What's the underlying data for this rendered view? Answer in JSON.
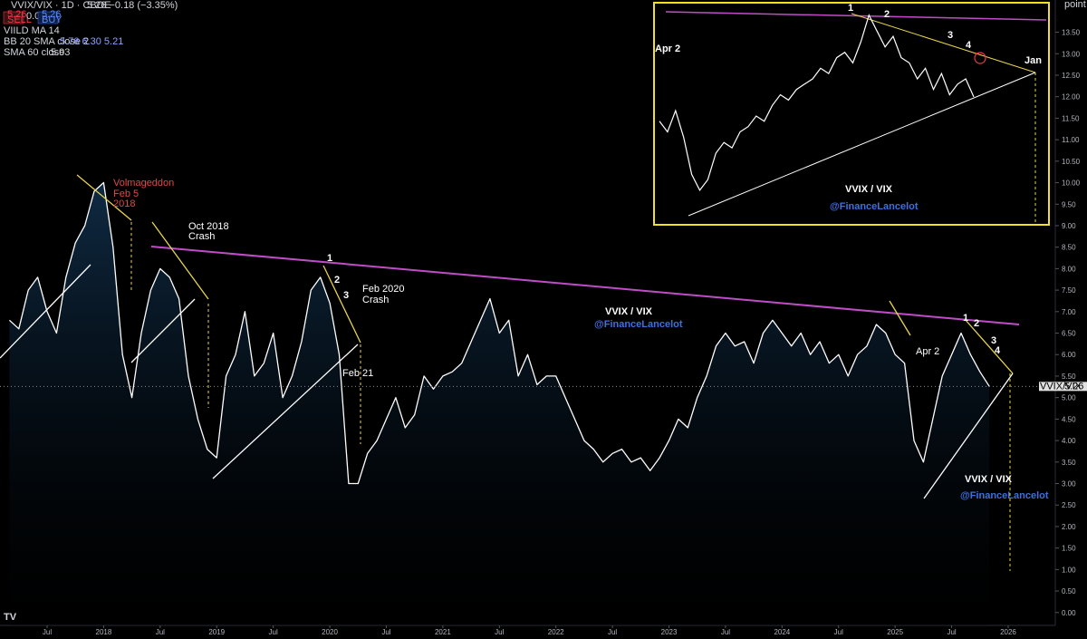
{
  "header": {
    "symbol": "VVIX/VIX · 1D · CBOE",
    "change": "5.26 −0.18 (−3.35%)",
    "sell_price": "5.26",
    "sell": "SELL",
    "spread": "0.00",
    "buy_price": "5.26",
    "buy": "BUY",
    "ind1": "VIILD MA 14",
    "ind2": "BB 20 SMA close 2",
    "ind2_values": "5.76 6.30 5.21",
    "ind3": "SMA 60 close",
    "ind3_value": "5.93",
    "unit": "point"
  },
  "chart_data": [
    {
      "type": "line",
      "title": "VVIX/VIX · 1D · CBOE",
      "x": [
        "2017-03",
        "2017-04",
        "2017-05",
        "2017-06",
        "2017-07",
        "2017-08",
        "2017-09",
        "2017-10",
        "2017-11",
        "2017-12",
        "2018-01",
        "2018-02",
        "2018-03",
        "2018-04",
        "2018-05",
        "2018-06",
        "2018-07",
        "2018-08",
        "2018-09",
        "2018-10",
        "2018-11",
        "2018-12",
        "2019-01",
        "2019-02",
        "2019-03",
        "2019-04",
        "2019-05",
        "2019-06",
        "2019-07",
        "2019-08",
        "2019-09",
        "2019-10",
        "2019-11",
        "2019-12",
        "2020-01",
        "2020-02",
        "2020-03",
        "2020-04",
        "2020-05",
        "2020-06",
        "2020-07",
        "2020-08",
        "2020-09",
        "2020-10",
        "2020-11",
        "2020-12",
        "2021-01",
        "2021-02",
        "2021-03",
        "2021-04",
        "2021-05",
        "2021-06",
        "2021-07",
        "2021-08",
        "2021-09",
        "2021-10",
        "2021-11",
        "2021-12",
        "2022-01",
        "2022-02",
        "2022-03",
        "2022-04",
        "2022-05",
        "2022-06",
        "2022-07",
        "2022-08",
        "2022-09",
        "2022-10",
        "2022-11",
        "2022-12",
        "2023-01",
        "2023-02",
        "2023-03",
        "2023-04",
        "2023-05",
        "2023-06",
        "2023-07",
        "2023-08",
        "2023-09",
        "2023-10",
        "2023-11",
        "2023-12",
        "2024-01",
        "2024-02",
        "2024-03",
        "2024-04",
        "2024-05",
        "2024-06",
        "2024-07",
        "2024-08",
        "2024-09",
        "2024-10",
        "2024-11",
        "2024-12",
        "2025-01",
        "2025-02",
        "2025-03",
        "2025-04",
        "2025-05",
        "2025-06",
        "2025-07",
        "2025-08",
        "2025-09",
        "2025-10",
        "2025-11"
      ],
      "series": [
        {
          "name": "VVIX/VIX",
          "color": "#ffffff",
          "values": [
            6.8,
            6.6,
            7.5,
            7.8,
            7.0,
            6.5,
            7.8,
            8.6,
            9.0,
            9.8,
            10.0,
            8.5,
            6.0,
            5.0,
            6.5,
            7.5,
            8.0,
            7.8,
            7.3,
            5.5,
            4.5,
            3.8,
            3.6,
            5.5,
            6.0,
            7.0,
            5.5,
            5.8,
            6.5,
            5.0,
            5.5,
            6.3,
            7.5,
            7.8,
            7.2,
            6.0,
            3.0,
            3.0,
            3.7,
            4.0,
            4.5,
            5.0,
            4.3,
            4.6,
            5.5,
            5.2,
            5.5,
            5.6,
            5.8,
            6.3,
            6.8,
            7.3,
            6.5,
            6.8,
            5.5,
            6.0,
            5.3,
            5.5,
            5.5,
            5.0,
            4.5,
            4.0,
            3.8,
            3.5,
            3.7,
            3.8,
            3.5,
            3.6,
            3.3,
            3.6,
            4.0,
            4.5,
            4.3,
            5.0,
            5.5,
            6.2,
            6.5,
            6.2,
            6.3,
            5.8,
            6.5,
            6.8,
            6.5,
            6.2,
            6.5,
            6.0,
            6.3,
            5.8,
            6.0,
            5.5,
            6.0,
            6.2,
            6.7,
            6.5,
            6.0,
            5.8,
            4.0,
            3.5,
            4.5,
            5.5,
            6.0,
            6.5,
            6.0,
            5.6,
            5.26
          ]
        }
      ],
      "last_value": 5.26,
      "xlim": [
        "2017-02",
        "2026-06"
      ],
      "ylim": [
        -0.3,
        14.25
      ],
      "xticks": [
        {
          "value": "2017-07",
          "label": "Jul"
        },
        {
          "value": "2018-01",
          "label": "2018"
        },
        {
          "value": "2018-07",
          "label": "Jul"
        },
        {
          "value": "2019-01",
          "label": "2019"
        },
        {
          "value": "2019-07",
          "label": "Jul"
        },
        {
          "value": "2020-01",
          "label": "2020"
        },
        {
          "value": "2020-07",
          "label": "Jul"
        },
        {
          "value": "2021-01",
          "label": "2021"
        },
        {
          "value": "2021-07",
          "label": "Jul"
        },
        {
          "value": "2022-01",
          "label": "2022"
        },
        {
          "value": "2022-07",
          "label": "Jul"
        },
        {
          "value": "2023-01",
          "label": "2023"
        },
        {
          "value": "2023-07",
          "label": "Jul"
        },
        {
          "value": "2024-01",
          "label": "2024"
        },
        {
          "value": "2024-07",
          "label": "Jul"
        },
        {
          "value": "2025-01",
          "label": "2025"
        },
        {
          "value": "2025-07",
          "label": "Jul"
        },
        {
          "value": "2026-01",
          "label": "2026"
        }
      ],
      "yticks": [
        {
          "value": 0,
          "label": "0.00"
        },
        {
          "value": 0.5,
          "label": "0.50"
        },
        {
          "value": 1,
          "label": "1.00"
        },
        {
          "value": 1.5,
          "label": "1.50"
        },
        {
          "value": 2,
          "label": "2.00"
        },
        {
          "value": 2.5,
          "label": "2.50"
        },
        {
          "value": 3,
          "label": "3.00"
        },
        {
          "value": 3.5,
          "label": "3.50"
        },
        {
          "value": 4,
          "label": "4.00"
        },
        {
          "value": 4.5,
          "label": "4.50"
        },
        {
          "value": 5,
          "label": "5.00"
        },
        {
          "value": 5.5,
          "label": "5.50"
        },
        {
          "value": 6,
          "label": "6.00"
        },
        {
          "value": 6.5,
          "label": "6.50"
        },
        {
          "value": 7,
          "label": "7.00"
        },
        {
          "value": 7.5,
          "label": "7.50"
        },
        {
          "value": 8,
          "label": "8.00"
        },
        {
          "value": 8.5,
          "label": "8.50"
        },
        {
          "value": 9,
          "label": "9.00"
        },
        {
          "value": 9.5,
          "label": "9.50"
        },
        {
          "value": 10,
          "label": "10.00"
        },
        {
          "value": 10.5,
          "label": "10.50"
        },
        {
          "value": 11,
          "label": "11.00"
        },
        {
          "value": 11.5,
          "label": "11.50"
        },
        {
          "value": 12,
          "label": "12.00"
        },
        {
          "value": 12.5,
          "label": "12.50"
        },
        {
          "value": 13,
          "label": "13.00"
        },
        {
          "value": 13.5,
          "label": "13.50"
        }
      ],
      "annotations": [
        "Volmageddon",
        "Feb 5",
        "2018",
        "Oct 2018",
        "Crash",
        "1",
        "2",
        "3",
        "Feb 2020",
        "Crash",
        "Feb 21",
        "VVIX / VIX",
        "@FinanceLancelot",
        "Apr 2",
        "1",
        "2",
        "3",
        "4",
        "VVIX / VIX",
        "@FinanceLancelot"
      ]
    },
    {
      "type": "line",
      "values": [
        4.8,
        4.6,
        5.0,
        4.5,
        3.8,
        3.5,
        3.7,
        4.2,
        4.4,
        4.3,
        4.6,
        4.7,
        4.9,
        4.8,
        5.1,
        5.3,
        5.2,
        5.4,
        5.5,
        5.6,
        5.8,
        5.7,
        6.0,
        6.1,
        5.9,
        6.3,
        6.8,
        6.5,
        6.2,
        6.4,
        6.0,
        5.9,
        5.6,
        5.8,
        5.4,
        5.7,
        5.3,
        5.5,
        5.6,
        5.26
      ],
      "color": "#ffffff",
      "ylim": [
        2.85,
        7.0
      ],
      "annotations": [
        "Apr 2",
        "1",
        "2",
        "3",
        "4",
        "Jan",
        "VVIX / VIX",
        "@FinanceLancelot"
      ]
    }
  ]
}
